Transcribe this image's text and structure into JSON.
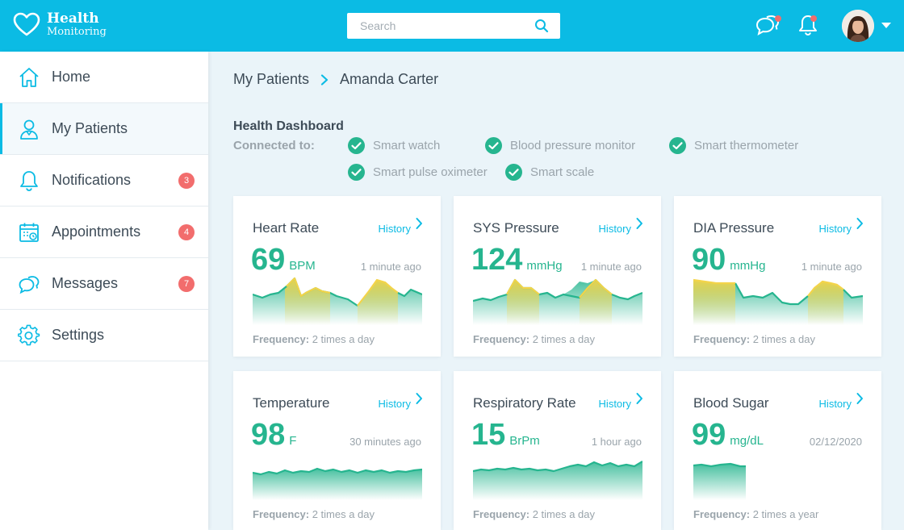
{
  "app": {
    "title": "Health",
    "subtitle": "Monitoring"
  },
  "search": {
    "placeholder": "Search"
  },
  "colors": {
    "accent": "#0bbbe4",
    "green": "#26b58f",
    "yellow": "#f3d44a",
    "badge": "#f26d6d"
  },
  "sidebar": {
    "items": [
      {
        "label": "Home",
        "icon": "home-icon"
      },
      {
        "label": "My Patients",
        "icon": "patient-icon"
      },
      {
        "label": "Notifications",
        "icon": "bell-icon",
        "badge": "3"
      },
      {
        "label": "Appointments",
        "icon": "calendar-icon",
        "badge": "4"
      },
      {
        "label": "Messages",
        "icon": "chat-icon",
        "badge": "7"
      },
      {
        "label": "Settings",
        "icon": "gear-icon"
      }
    ]
  },
  "breadcrumb": {
    "parent": "My Patients",
    "current": "Amanda Carter"
  },
  "dashboard": {
    "title": "Health Dashboard",
    "connected_label": "Connected to:",
    "devices": [
      "Smart watch",
      "Blood pressure monitor",
      "Smart thermometer",
      "Smart pulse oximeter",
      "Smart scale"
    ]
  },
  "cards": [
    {
      "title": "Heart Rate",
      "history": "History",
      "value": "69",
      "unit": "BPM",
      "time": "1 minute ago",
      "freq_label": "Frequency:",
      "freq": "2 times a day"
    },
    {
      "title": "SYS Pressure",
      "history": "History",
      "value": "124",
      "unit": "mmHg",
      "time": "1 minute ago",
      "freq_label": "Frequency:",
      "freq": "2 times a day"
    },
    {
      "title": "DIA Pressure",
      "history": "History",
      "value": "90",
      "unit": "mmHg",
      "time": "1 minute ago",
      "freq_label": "Frequency:",
      "freq": "2 times a day"
    },
    {
      "title": "Temperature",
      "history": "History",
      "value": "98",
      "unit": "F",
      "time": "30 minutes ago",
      "freq_label": "Frequency:",
      "freq": "2 times a day"
    },
    {
      "title": "Respiratory Rate",
      "history": "History",
      "value": "15",
      "unit": "BrPm",
      "time": "1 hour ago",
      "freq_label": "Frequency:",
      "freq": "2 times a day"
    },
    {
      "title": "Blood Sugar",
      "history": "History",
      "value": "99",
      "unit": "mg/dL",
      "time": "02/12/2020",
      "freq_label": "Frequency:",
      "freq": "2 times a year"
    }
  ]
}
